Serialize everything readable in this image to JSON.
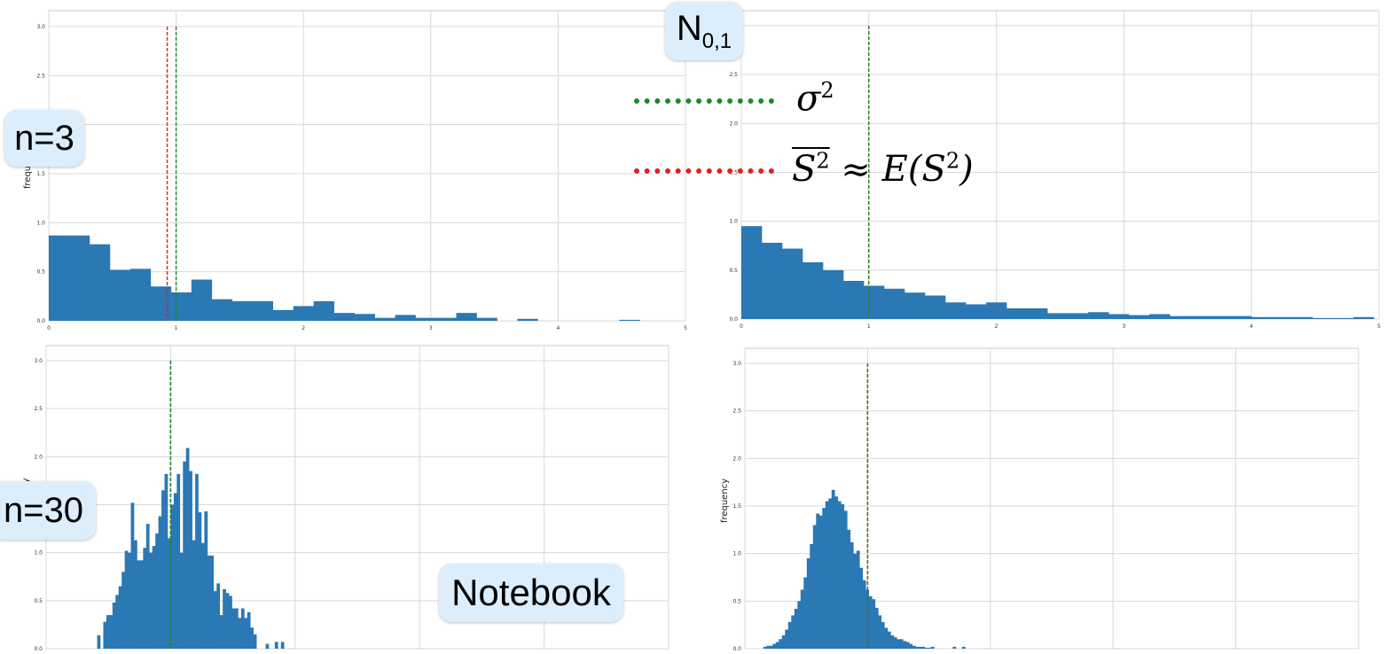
{
  "colors": {
    "bar": "#2a78b4",
    "sample_mean_line": "#e02020",
    "sigma_line": "#1a8a2a",
    "grid": "#d9d9d9",
    "bubble_bg": "#dceefb"
  },
  "labels": {
    "n3": "n=3",
    "n30": "n=30",
    "normal_main": "N",
    "normal_sub": "0,1",
    "notebook": "Notebook",
    "y_label_top_left": "frequ",
    "y_label_bottom_left": "cy",
    "y_label_bottom_right": "frequency"
  },
  "legend": {
    "sigma_sym": "σ",
    "sigma_exp": "2",
    "mean_lhs": "S",
    "mean_lhs_exp": "2",
    "approx": "≈",
    "mean_rhs": "E(S",
    "mean_rhs_exp": "2",
    "mean_rhs_close": ")"
  },
  "chart_data": [
    {
      "type": "bar",
      "panel": "top-left",
      "ylabel": "frequ",
      "xlim": [
        0,
        5
      ],
      "ylim": [
        0,
        3
      ],
      "xticks": [
        "0",
        "1",
        "2",
        "3",
        "4",
        "5"
      ],
      "yticks": [
        "0.0",
        "0.5",
        "1.0",
        "1.5",
        "2.0",
        "2.5",
        "3.0"
      ],
      "grid": true,
      "bin_width": 0.16,
      "x_start": 0,
      "values": [
        0.87,
        0.87,
        0.78,
        0.52,
        0.53,
        0.35,
        0.29,
        0.42,
        0.22,
        0.2,
        0.2,
        0.11,
        0.15,
        0.2,
        0.08,
        0.07,
        0.03,
        0.06,
        0.03,
        0.03,
        0.08,
        0.03,
        0.0,
        0.02,
        0.0,
        0.0,
        0.0,
        0.0,
        0.01,
        0.0,
        0.0
      ],
      "vlines": [
        {
          "x": 0.93,
          "color": "red"
        },
        {
          "x": 1.0,
          "color": "green"
        }
      ]
    },
    {
      "type": "bar",
      "panel": "top-right",
      "ylabel": "",
      "xlim": [
        0,
        5
      ],
      "ylim": [
        0,
        3
      ],
      "xticks": [
        "0",
        "1",
        "2",
        "3",
        "4",
        "5"
      ],
      "yticks": [
        "0.0",
        "0.5",
        "1.0",
        "1.5",
        "2.0",
        "2.5"
      ],
      "grid": true,
      "bin_width": 0.16,
      "x_start": 0,
      "values": [
        0.95,
        0.78,
        0.72,
        0.58,
        0.5,
        0.39,
        0.34,
        0.31,
        0.27,
        0.24,
        0.17,
        0.15,
        0.17,
        0.11,
        0.11,
        0.06,
        0.06,
        0.07,
        0.05,
        0.04,
        0.05,
        0.03,
        0.03,
        0.03,
        0.03,
        0.02,
        0.02,
        0.02,
        0.01,
        0.01,
        0.02
      ],
      "vlines": [
        {
          "x": 1.0,
          "color": "red"
        },
        {
          "x": 1.0,
          "color": "green"
        }
      ]
    },
    {
      "type": "bar",
      "panel": "bottom-left",
      "ylabel": "cy",
      "xlim": [
        0,
        5
      ],
      "ylim": [
        0,
        3
      ],
      "yticks": [
        "0.0",
        "0.5",
        "1.0",
        "1.5",
        "2.0",
        "2.5",
        "3.0"
      ],
      "grid": true,
      "bin_width": 0.0246,
      "x_start": 0.41,
      "values": [
        0.14,
        0,
        0.28,
        0.35,
        0.35,
        0.48,
        0.56,
        0.65,
        0.8,
        1.02,
        1.0,
        1.52,
        1.13,
        0.92,
        0.92,
        1.05,
        1.3,
        1.0,
        1.07,
        1.2,
        1.38,
        1.65,
        1.82,
        1.15,
        1.5,
        1.62,
        1.82,
        1.0,
        1.95,
        2.09,
        1.85,
        1.13,
        1.82,
        1.42,
        1.1,
        1.43,
        0.97,
        0.97,
        0.6,
        0.68,
        0.35,
        0.62,
        0.58,
        0.55,
        0.42,
        0.42,
        0.32,
        0.42,
        0.32,
        0.38,
        0.22,
        0.15,
        0,
        0,
        0,
        0.05,
        0,
        0,
        0.07,
        0,
        0.07
      ],
      "vlines": [
        {
          "x": 1.0,
          "color": "red"
        },
        {
          "x": 1.0,
          "color": "green"
        }
      ]
    },
    {
      "type": "bar",
      "panel": "bottom-right",
      "ylabel": "frequency",
      "xlim": [
        0,
        5
      ],
      "ylim": [
        0,
        3
      ],
      "yticks": [
        "0.0",
        "0.5",
        "1.0",
        "1.5",
        "2.0",
        "2.5",
        "3.0"
      ],
      "grid": true,
      "bin_width": 0.0253,
      "x_start": 0.15,
      "values": [
        0.02,
        0.03,
        0.03,
        0.05,
        0.07,
        0.1,
        0.14,
        0.2,
        0.28,
        0.35,
        0.42,
        0.5,
        0.62,
        0.75,
        0.95,
        1.1,
        1.3,
        1.42,
        1.4,
        1.48,
        1.55,
        1.58,
        1.67,
        1.6,
        1.55,
        1.52,
        1.45,
        1.25,
        1.12,
        1.0,
        1.03,
        0.85,
        0.72,
        0.62,
        0.55,
        0.52,
        0.43,
        0.35,
        0.28,
        0.22,
        0.18,
        0.14,
        0.12,
        0.1,
        0.1,
        0.08,
        0.07,
        0.05,
        0.03,
        0.02,
        0.02,
        0.02,
        0.01,
        0.01,
        0.02,
        0.0,
        0.0,
        0.0,
        0.0,
        0.0,
        0.0,
        0.02,
        0.0,
        0.0,
        0.02
      ],
      "vlines": [
        {
          "x": 1.0,
          "color": "red"
        },
        {
          "x": 1.0,
          "color": "green"
        }
      ]
    }
  ]
}
